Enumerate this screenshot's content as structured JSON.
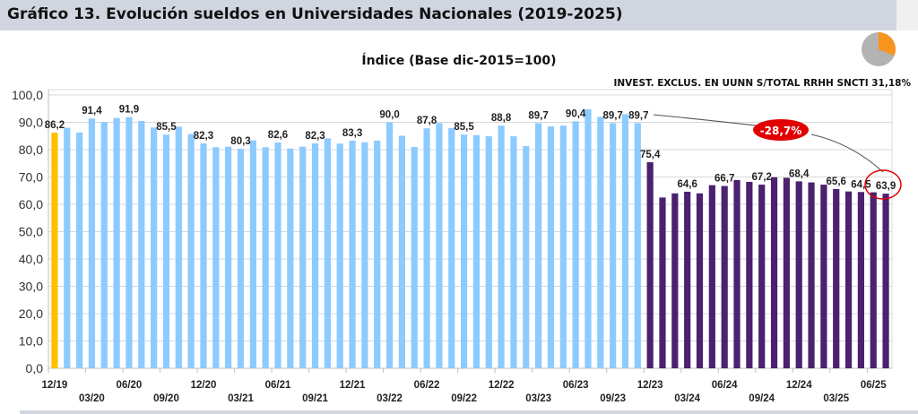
{
  "header": {
    "title": "Gráfico 13. Evolución sueldos en Universidades Nacionales (2019-2025)"
  },
  "inset": {
    "label": "INVEST. EXCLUS. EN UUNN S/TOTAL RRHH SNCTI  31,18%",
    "share": 31.18,
    "colors": {
      "slice": "#f7941d",
      "rest": "#b3b3b3"
    }
  },
  "annotation": {
    "change_label": "-28,7%",
    "color": "#e00000"
  },
  "chart_data": {
    "type": "bar",
    "title": "Índice (Base dic-2015=100)",
    "xlabel": "",
    "ylabel": "",
    "ylim": [
      0,
      100
    ],
    "yticks": [
      "0,0",
      "10,0",
      "20,0",
      "30,0",
      "40,0",
      "50,0",
      "60,0",
      "70,0",
      "80,0",
      "90,0",
      "100,0"
    ],
    "grid": true,
    "xticklabels": [
      "12/19",
      "03/20",
      "06/20",
      "09/20",
      "12/20",
      "03/21",
      "06/21",
      "09/21",
      "12/21",
      "03/22",
      "06/22",
      "09/22",
      "12/22",
      "03/23",
      "06/23",
      "09/23",
      "12/23",
      "03/24",
      "06/24",
      "09/24",
      "12/24",
      "03/25",
      "06/25"
    ],
    "colors": {
      "first": "#ffc000",
      "before": "#8ccbff",
      "after": "#4b2170"
    },
    "values": [
      86.2,
      88.0,
      86.3,
      91.4,
      90.1,
      91.6,
      91.9,
      90.5,
      88.1,
      85.5,
      88.4,
      85.7,
      82.3,
      80.9,
      81.1,
      80.3,
      83.4,
      80.9,
      82.6,
      80.4,
      81.1,
      82.3,
      84.1,
      82.2,
      83.3,
      82.7,
      83.3,
      90.0,
      85.1,
      81.0,
      87.8,
      89.7,
      87.9,
      85.5,
      85.3,
      84.9,
      88.8,
      84.9,
      81.3,
      89.7,
      88.5,
      88.8,
      90.4,
      94.8,
      92.0,
      89.7,
      93.0,
      89.7,
      75.4,
      62.5,
      64.0,
      64.6,
      64.0,
      67.0,
      66.7,
      68.9,
      68.2,
      67.2,
      69.9,
      69.7,
      68.4,
      68.0,
      67.2,
      65.6,
      64.7,
      64.5,
      64.4,
      63.9
    ],
    "data_labels": [
      {
        "index": 0,
        "text": "86,2"
      },
      {
        "index": 3,
        "text": "91,4"
      },
      {
        "index": 6,
        "text": "91,9"
      },
      {
        "index": 9,
        "text": "85,5"
      },
      {
        "index": 12,
        "text": "82,3"
      },
      {
        "index": 15,
        "text": "80,3"
      },
      {
        "index": 18,
        "text": "82,6"
      },
      {
        "index": 21,
        "text": "82,3"
      },
      {
        "index": 24,
        "text": "83,3"
      },
      {
        "index": 27,
        "text": "90,0"
      },
      {
        "index": 30,
        "text": "87,8"
      },
      {
        "index": 33,
        "text": "85,5"
      },
      {
        "index": 36,
        "text": "88,8"
      },
      {
        "index": 39,
        "text": "89,7"
      },
      {
        "index": 42,
        "text": "90,4"
      },
      {
        "index": 45,
        "text": "89,7"
      },
      {
        "index": 47,
        "text": "89,7"
      },
      {
        "index": 48,
        "text": "75,4"
      },
      {
        "index": 51,
        "text": "64,6"
      },
      {
        "index": 54,
        "text": "66,7"
      },
      {
        "index": 57,
        "text": "67,2"
      },
      {
        "index": 60,
        "text": "68,4"
      },
      {
        "index": 63,
        "text": "65,6"
      },
      {
        "index": 65,
        "text": "64,5"
      },
      {
        "index": 67,
        "text": "63,9"
      }
    ]
  }
}
